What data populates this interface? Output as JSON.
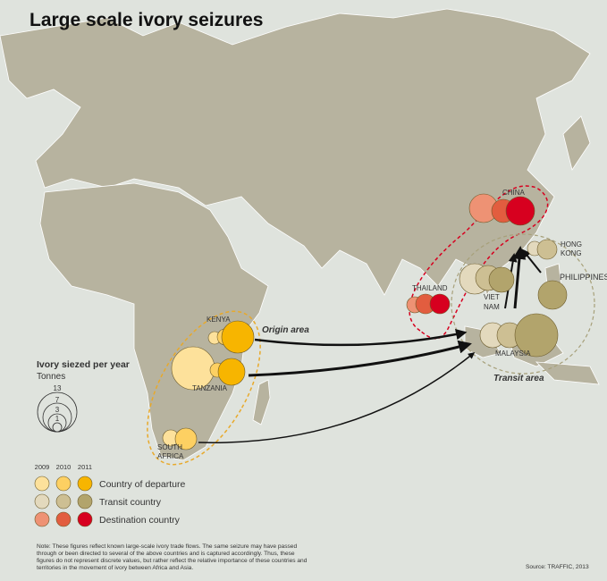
{
  "title": "Large scale ivory seizures",
  "colors": {
    "sea": "#dfe3dd",
    "land": "#b7b39f",
    "departure": [
      "#fde19b",
      "#fdd062",
      "#f7b500"
    ],
    "transit": [
      "#e3d9bd",
      "#cdbf93",
      "#b2a46c"
    ],
    "destination": [
      "#ee9274",
      "#e25d3f",
      "#d7001f"
    ]
  },
  "countries": [
    {
      "name": "KENYA",
      "type": "departure"
    },
    {
      "name": "TANZANIA",
      "type": "departure"
    },
    {
      "name": "SOUTH",
      "name2": "AFRICA",
      "type": "departure"
    },
    {
      "name": "CHINA",
      "type": "destination"
    },
    {
      "name": "THAILAND",
      "type": "destination"
    },
    {
      "name": "HONG",
      "name2": "KONG",
      "type": "transit"
    },
    {
      "name": "PHILIPPINES",
      "type": "transit"
    },
    {
      "name": "VIET",
      "name2": "NAM",
      "type": "transit"
    },
    {
      "name": "MALAYSIA",
      "type": "transit"
    }
  ],
  "areas": {
    "origin": "Origin area",
    "transit": "Transit area"
  },
  "size_legend": {
    "title": "Ivory siezed per year",
    "unit": "Tonnes",
    "values": [
      "13",
      "7",
      "3",
      "1"
    ]
  },
  "color_legend": {
    "years": [
      "2009",
      "2010",
      "2011"
    ],
    "rows": [
      "Country of departure",
      "Transit country",
      "Destination country"
    ]
  },
  "note": [
    "Note: These figures reflect known large-scale ivory trade flows.  The same seizure may have passed",
    "through or been directed to several of the above countries and is captured accordingly.  Thus, these",
    "figures do not represent discrete values, but rather reflect the relative importance of these countries and",
    "territories in the movement of ivory between Africa and Asia."
  ],
  "source": "Source: TRAFFIC, 2013"
}
